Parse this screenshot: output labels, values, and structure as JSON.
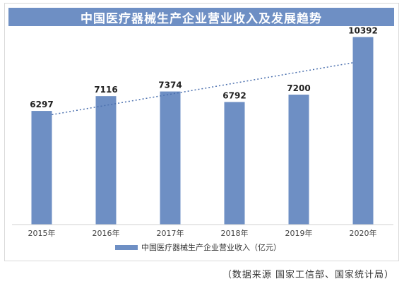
{
  "chart_data": {
    "type": "bar",
    "title": "中国医疗器械生产企业营业收入及发展趋势",
    "categories": [
      "2015年",
      "2016年",
      "2017年",
      "2018年",
      "2019年",
      "2020年"
    ],
    "series": [
      {
        "name": "中国医疗器械生产企业营业收入（亿元）",
        "values": [
          6297,
          7116,
          7374,
          6792,
          7200,
          10392
        ]
      }
    ],
    "trendline": {
      "style": "dotted",
      "type": "linear"
    },
    "ylim": [
      0,
      10800
    ],
    "grid": false,
    "legend": "bottom-center",
    "colors": {
      "bar": "#6e8fc4",
      "title_bg": "#6e8fc4",
      "trend": "#4a6fae"
    }
  },
  "source_note": "（数据来源  国家工信部、国家统计局）"
}
